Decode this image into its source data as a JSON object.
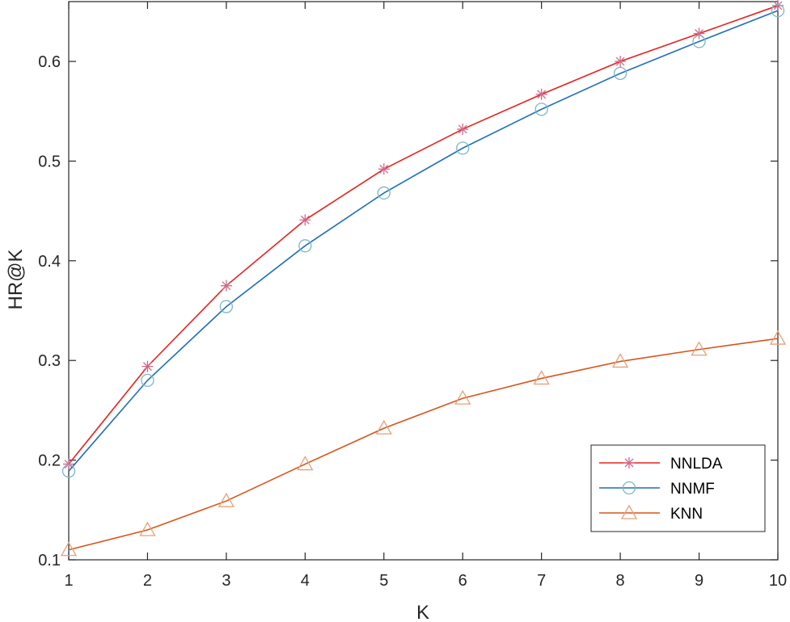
{
  "chart_data": {
    "type": "line",
    "title": "",
    "xlabel": "K",
    "ylabel": "HR@K",
    "x": [
      1,
      2,
      3,
      4,
      5,
      6,
      7,
      8,
      9,
      10
    ],
    "xlim": [
      1,
      10
    ],
    "ylim": [
      0.1,
      0.66
    ],
    "xticks": [
      "1",
      "2",
      "3",
      "4",
      "5",
      "6",
      "7",
      "8",
      "9",
      "10"
    ],
    "yticks": [
      "0.1",
      "0.2",
      "0.3",
      "0.4",
      "0.5",
      "0.6"
    ],
    "grid": false,
    "legend_position": "bottom-right",
    "series": [
      {
        "name": "NNLDA",
        "marker": "asterisk",
        "line_color": "#e8211b",
        "marker_color": "#d06a8c",
        "values": [
          0.196,
          0.294,
          0.375,
          0.441,
          0.492,
          0.532,
          0.567,
          0.6,
          0.628,
          0.656
        ]
      },
      {
        "name": "NNMF",
        "marker": "circle",
        "line_color": "#1f6fb8",
        "marker_color": "#7db6c6",
        "values": [
          0.189,
          0.28,
          0.354,
          0.415,
          0.468,
          0.513,
          0.552,
          0.588,
          0.62,
          0.651
        ]
      },
      {
        "name": "KNN",
        "marker": "triangle",
        "line_color": "#d95319",
        "marker_color": "#e6a07a",
        "values": [
          0.11,
          0.13,
          0.159,
          0.196,
          0.232,
          0.262,
          0.282,
          0.299,
          0.311,
          0.322
        ]
      }
    ]
  }
}
